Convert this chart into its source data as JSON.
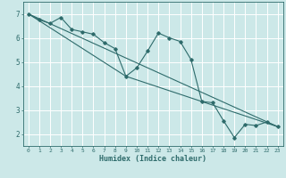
{
  "xlabel": "Humidex (Indice chaleur)",
  "bg_color": "#cce8e8",
  "grid_color": "#ffffff",
  "line_color": "#2e6b6b",
  "xlim": [
    -0.5,
    23.5
  ],
  "ylim": [
    1.5,
    7.5
  ],
  "xticks": [
    0,
    1,
    2,
    3,
    4,
    5,
    6,
    7,
    8,
    9,
    10,
    11,
    12,
    13,
    14,
    15,
    16,
    17,
    18,
    19,
    20,
    21,
    22,
    23
  ],
  "yticks": [
    2,
    3,
    4,
    5,
    6,
    7
  ],
  "series": [
    [
      0,
      7.0
    ],
    [
      1,
      6.75
    ],
    [
      2,
      6.6
    ],
    [
      3,
      6.85
    ],
    [
      4,
      6.35
    ],
    [
      5,
      6.25
    ],
    [
      6,
      6.15
    ],
    [
      7,
      5.8
    ],
    [
      8,
      5.55
    ],
    [
      9,
      4.4
    ],
    [
      10,
      4.75
    ],
    [
      11,
      5.45
    ],
    [
      12,
      6.2
    ],
    [
      13,
      6.0
    ],
    [
      14,
      5.85
    ],
    [
      15,
      5.1
    ],
    [
      16,
      3.35
    ],
    [
      17,
      3.3
    ],
    [
      18,
      2.55
    ],
    [
      19,
      1.85
    ],
    [
      20,
      2.4
    ],
    [
      21,
      2.35
    ],
    [
      22,
      2.5
    ],
    [
      23,
      2.3
    ]
  ],
  "line2": [
    [
      0,
      7.0
    ],
    [
      23,
      2.3
    ]
  ],
  "line3": [
    [
      0,
      7.0
    ],
    [
      9,
      4.4
    ],
    [
      23,
      2.3
    ]
  ]
}
